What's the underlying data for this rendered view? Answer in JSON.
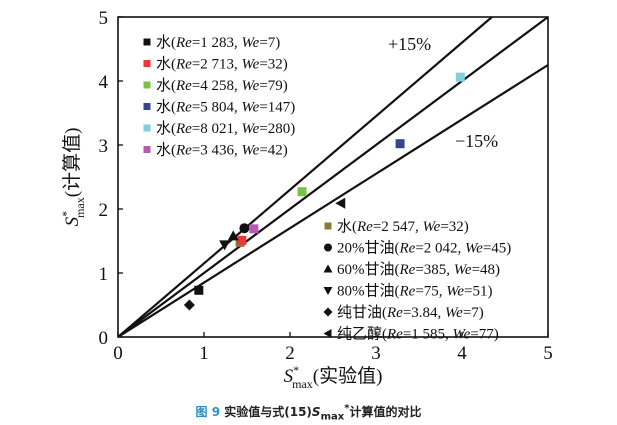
{
  "chart_data": {
    "type": "scatter",
    "xlabel": {
      "main": "S",
      "sup": "*",
      "sub": "max",
      "rest": "(实验值)"
    },
    "ylabel": {
      "main": "S",
      "sup": "*",
      "sub": "max",
      "rest": "(计算值)"
    },
    "xlim": [
      0,
      5
    ],
    "ylim": [
      0,
      5
    ],
    "xticks": [
      "0",
      "1",
      "2",
      "3",
      "4",
      "5"
    ],
    "yticks": [
      "0",
      "1",
      "2",
      "3",
      "4",
      "5"
    ],
    "grid": false,
    "reference_lines": [
      {
        "slope": 1.15,
        "label": "+15%"
      },
      {
        "slope": 1.0,
        "label": ""
      },
      {
        "slope": 0.85,
        "label": "−15%"
      }
    ],
    "series": [
      {
        "name": "水(Re=1 283, We=7)",
        "fluid": "水",
        "re": "1 283",
        "we": "7",
        "marker": "square",
        "color": "#111111",
        "x": [
          0.94
        ],
        "y": [
          0.73
        ]
      },
      {
        "name": "水(Re=2 713, We=32)",
        "fluid": "水",
        "re": "2 713",
        "we": "32",
        "marker": "square",
        "color": "#e53935",
        "x": [
          1.44
        ],
        "y": [
          1.51
        ]
      },
      {
        "name": "水(Re=4 258, We=79)",
        "fluid": "水",
        "re": "4 258",
        "we": "79",
        "marker": "square",
        "color": "#7cc242",
        "x": [
          2.14
        ],
        "y": [
          2.27
        ]
      },
      {
        "name": "水(Re=5 804, We=147)",
        "fluid": "水",
        "re": "5 804",
        "we": "147",
        "marker": "square",
        "color": "#34468f",
        "x": [
          3.28
        ],
        "y": [
          3.02
        ]
      },
      {
        "name": "水(Re=8 021, We=280)",
        "fluid": "水",
        "re": "8 021",
        "we": "280",
        "marker": "square",
        "color": "#7fd0dc",
        "x": [
          3.98
        ],
        "y": [
          4.06
        ]
      },
      {
        "name": "水(Re=3 436, We=42)",
        "fluid": "水",
        "re": "3 436",
        "we": "42",
        "marker": "square",
        "color": "#b45bb4",
        "x": [
          1.58
        ],
        "y": [
          1.69
        ]
      },
      {
        "name": "水(Re=2 547, We=32)",
        "fluid": "水",
        "re": "2 547",
        "we": "32",
        "marker": "square",
        "color": "#8a7a3a",
        "x": [
          1.42
        ],
        "y": [
          1.48
        ]
      },
      {
        "name": "20%甘油(Re=2 042, We=45)",
        "fluid": "20%甘油",
        "re": "2 042",
        "we": "45",
        "marker": "circle",
        "color": "#111111",
        "x": [
          1.47
        ],
        "y": [
          1.7
        ]
      },
      {
        "name": "60%甘油(Re=385, We=48)",
        "fluid": "60%甘油",
        "re": "385",
        "we": "48",
        "marker": "triangle-up",
        "color": "#111111",
        "x": [
          1.34
        ],
        "y": [
          1.58
        ]
      },
      {
        "name": "80%甘油(Re=75, We=51)",
        "fluid": "80%甘油",
        "re": "75",
        "we": "51",
        "marker": "triangle-down",
        "color": "#111111",
        "x": [
          1.24
        ],
        "y": [
          1.44
        ]
      },
      {
        "name": "纯甘油(Re=3.84, We=7)",
        "fluid": "纯甘油",
        "re": "3.84",
        "we": "7",
        "marker": "diamond",
        "color": "#111111",
        "x": [
          0.83
        ],
        "y": [
          0.5
        ]
      },
      {
        "name": "纯乙醇(Re=1 585, We=77)",
        "fluid": "纯乙醇",
        "re": "1 585",
        "we": "77",
        "marker": "triangle-left",
        "color": "#111111",
        "x": [
          2.59
        ],
        "y": [
          2.09
        ]
      }
    ],
    "legend_placement": [
      "top-left",
      "bottom-right"
    ]
  },
  "caption": {
    "fig": "图 9",
    "text": "实验值与式(15)",
    "s": "S",
    "sub": "max",
    "sup": "*",
    "rest": "计算值的对比"
  }
}
